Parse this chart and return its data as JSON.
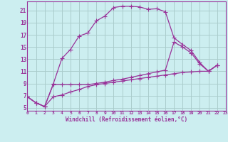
{
  "xlabel": "Windchill (Refroidissement éolien,°C)",
  "bg_color": "#cceef0",
  "grid_color": "#aacccc",
  "line_color": "#993399",
  "spine_color": "#993399",
  "xlim": [
    0,
    23
  ],
  "ylim": [
    4.5,
    22.5
  ],
  "yticks": [
    5,
    7,
    9,
    11,
    13,
    15,
    17,
    19,
    21
  ],
  "xticks": [
    0,
    1,
    2,
    3,
    4,
    5,
    6,
    7,
    8,
    9,
    10,
    11,
    12,
    13,
    14,
    15,
    16,
    17,
    18,
    19,
    20,
    21,
    22,
    23
  ],
  "curve1_x": [
    0,
    1,
    2,
    3,
    4,
    5,
    6,
    7,
    8,
    9,
    10,
    11,
    12,
    13,
    14,
    15,
    16,
    17,
    18,
    19,
    20,
    21,
    22
  ],
  "curve1_y": [
    6.8,
    5.8,
    5.2,
    8.9,
    13.1,
    14.6,
    16.8,
    17.3,
    19.3,
    20.1,
    21.5,
    21.7,
    21.7,
    21.6,
    21.2,
    21.3,
    20.8,
    16.5,
    15.4,
    14.4,
    12.4,
    11.0,
    12.0
  ],
  "curve2_x": [
    0,
    1,
    2,
    3,
    4,
    5,
    6,
    7,
    8,
    9,
    10,
    11,
    12,
    13,
    14,
    15,
    16,
    17,
    18,
    19,
    20,
    21,
    22
  ],
  "curve2_y": [
    6.8,
    5.8,
    5.2,
    8.8,
    8.8,
    8.8,
    8.8,
    8.8,
    9.0,
    9.2,
    9.5,
    9.7,
    10.0,
    10.3,
    10.6,
    10.9,
    11.2,
    15.8,
    15.0,
    14.0,
    12.2,
    11.0,
    12.0
  ],
  "curve3_x": [
    0,
    1,
    2,
    3,
    4,
    5,
    6,
    7,
    8,
    9,
    10,
    11,
    12,
    13,
    14,
    15,
    16,
    17,
    18,
    19,
    20,
    21,
    22
  ],
  "curve3_y": [
    6.8,
    5.8,
    5.2,
    6.8,
    7.1,
    7.6,
    8.0,
    8.5,
    8.8,
    9.0,
    9.2,
    9.4,
    9.6,
    9.8,
    10.0,
    10.2,
    10.4,
    10.6,
    10.8,
    10.9,
    11.0,
    11.0,
    12.0
  ]
}
